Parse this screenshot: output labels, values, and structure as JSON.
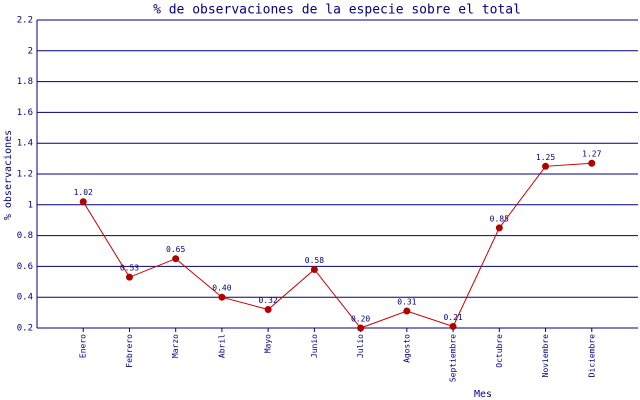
{
  "chart_data": {
    "type": "line",
    "title": "% de observaciones de la especie sobre el total",
    "x_label": "Mes",
    "y_label": "% observaciones",
    "categories": [
      "Enero",
      "Febrero",
      "Marzo",
      "Abril",
      "Mayo",
      "Junio",
      "Julio",
      "Agosto",
      "Septiembre",
      "Octubre",
      "Noviembre",
      "Diciembre"
    ],
    "values": [
      1.02,
      0.53,
      0.65,
      0.4,
      0.32,
      0.58,
      0.2,
      0.31,
      0.21,
      0.85,
      1.25,
      1.27
    ],
    "value_labels": [
      "1.02",
      "0.53",
      "0.65",
      "0.40",
      "0.32",
      "0.58",
      "0.20",
      "0.31",
      "0.21",
      "0.85",
      "1.25",
      "1.27"
    ],
    "color": "#cc0000",
    "ylim": [
      0.2,
      2.2
    ],
    "yticks": [
      0.2,
      0.4,
      0.6,
      0.8,
      1,
      1.2,
      1.4,
      1.6,
      1.8,
      2,
      2.2
    ],
    "grid": true
  }
}
